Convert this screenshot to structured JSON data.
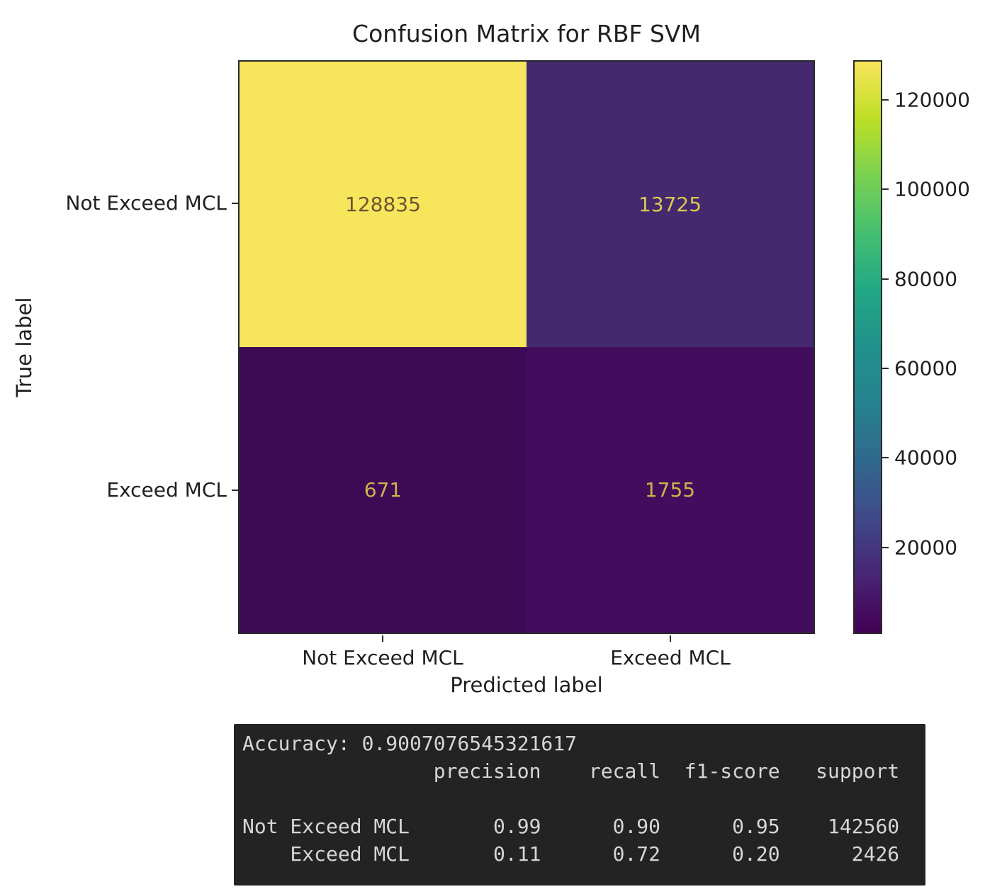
{
  "figure": {
    "background": "#ffffff",
    "text_color": "#1f1f1f"
  },
  "chart_data": {
    "type": "heatmap",
    "title": "Confusion Matrix for RBF SVM",
    "xlabel": "Predicted label",
    "ylabel": "True label",
    "x_tick_labels": [
      "Not Exceed MCL",
      "Exceed MCL"
    ],
    "y_tick_labels": [
      "Not Exceed MCL",
      "Exceed MCL"
    ],
    "matrix": [
      [
        128835,
        13725
      ],
      [
        671,
        1755
      ]
    ],
    "colormap": "viridis",
    "vmin": 671,
    "vmax": 128835,
    "colorbar_ticks": [
      20000,
      40000,
      60000,
      80000,
      100000,
      120000
    ],
    "colorbar_gradient": [
      "#440154",
      "#482475",
      "#3f4989",
      "#31688e",
      "#26828e",
      "#21918c",
      "#22a884",
      "#44bf70",
      "#7ad151",
      "#bddf26",
      "#f8e55b"
    ],
    "cell_colors": [
      [
        "#f7e55b",
        "#44296e"
      ],
      [
        "#3d0a55",
        "#420d5c"
      ]
    ],
    "cell_text_colors": [
      [
        "#6b5434",
        "#dcc751"
      ],
      [
        "#ceb44a",
        "#ceb44a"
      ]
    ],
    "legend_position": "right-colorbar",
    "grid": false
  },
  "terminal": {
    "background": "#232323",
    "text_color": "#d6d6d6",
    "accuracy_label": "Accuracy:",
    "accuracy_value": "0.9007076545321617",
    "report": {
      "columns": [
        "precision",
        "recall",
        "f1-score",
        "support"
      ],
      "rows": [
        {
          "label": "Not Exceed MCL",
          "values": [
            "0.99",
            "0.90",
            "0.95",
            "142560"
          ]
        },
        {
          "label": "Exceed MCL",
          "values": [
            "0.11",
            "0.72",
            "0.20",
            "2426"
          ]
        }
      ]
    }
  }
}
